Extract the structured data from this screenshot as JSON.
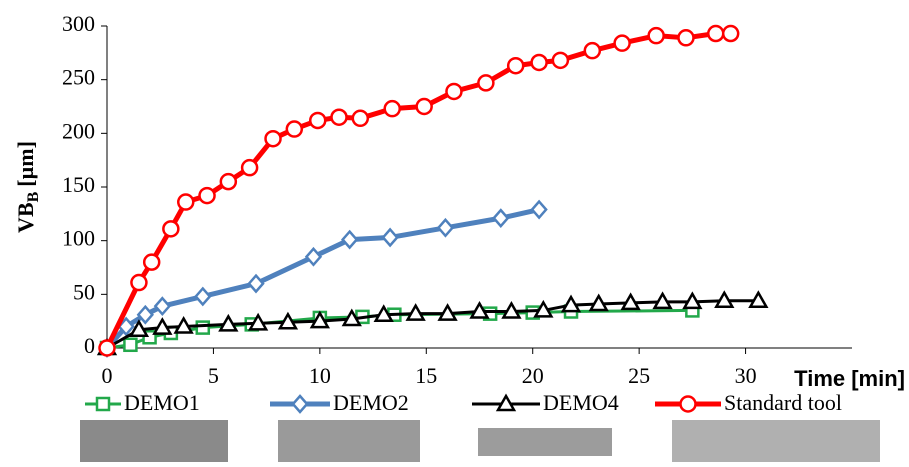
{
  "chart_data": {
    "type": "line",
    "ylabel": {
      "main": "VB",
      "sub": "B",
      "unit": "[µm]"
    },
    "xlabel": "Time [min]",
    "xlim": [
      0,
      35
    ],
    "xticks": [
      0,
      5,
      10,
      15,
      20,
      25,
      30
    ],
    "ylim": [
      0,
      300
    ],
    "yticks": [
      0,
      50,
      100,
      150,
      200,
      250,
      300
    ],
    "series": [
      {
        "name": "DEMO1",
        "color": "#22a84a",
        "marker": "square",
        "x": [
          0,
          1.1,
          2,
          3,
          4.5,
          6.8,
          10,
          12,
          13.5,
          18,
          20,
          21.8,
          27.5
        ],
        "values": [
          0,
          3,
          10,
          14,
          19,
          22,
          28,
          29,
          31,
          32,
          33,
          34,
          35
        ]
      },
      {
        "name": "DEMO2",
        "color": "#4f81bd",
        "marker": "diamond",
        "x": [
          0,
          0.9,
          1.8,
          2.6,
          4.5,
          7,
          9.7,
          11.4,
          13.3,
          15.9,
          18.5,
          20.3
        ],
        "values": [
          0,
          20,
          31,
          39,
          48,
          60,
          85,
          101,
          103,
          112,
          121,
          129
        ]
      },
      {
        "name": "DEMO4",
        "color": "#000000",
        "marker": "triangle",
        "x": [
          0,
          1.5,
          2.6,
          3.6,
          5.7,
          7.1,
          8.5,
          10,
          11.5,
          13,
          14.5,
          16,
          17.5,
          19,
          20.5,
          21.8,
          23.1,
          24.6,
          26.1,
          27.5,
          29,
          30.6
        ],
        "values": [
          0,
          17,
          19,
          20,
          22,
          23,
          24,
          25,
          27,
          31,
          32,
          32,
          34,
          34,
          35,
          40,
          41,
          42,
          43,
          43,
          44,
          44
        ]
      },
      {
        "name": "Standard tool",
        "color": "#ff0000",
        "marker": "circle",
        "x": [
          0,
          1.5,
          2.1,
          3,
          3.7,
          4.7,
          5.7,
          6.7,
          7.8,
          8.8,
          9.9,
          10.9,
          11.9,
          13.4,
          14.9,
          16.3,
          17.8,
          19.2,
          20.3,
          21.3,
          22.8,
          24.2,
          25.8,
          27.2,
          28.6,
          29.3
        ],
        "values": [
          0,
          61,
          80,
          111,
          136,
          142,
          155,
          168,
          195,
          204,
          212,
          215,
          214,
          223,
          225,
          239,
          247,
          263,
          266,
          268,
          277,
          284,
          291,
          289,
          293,
          293
        ]
      }
    ]
  }
}
